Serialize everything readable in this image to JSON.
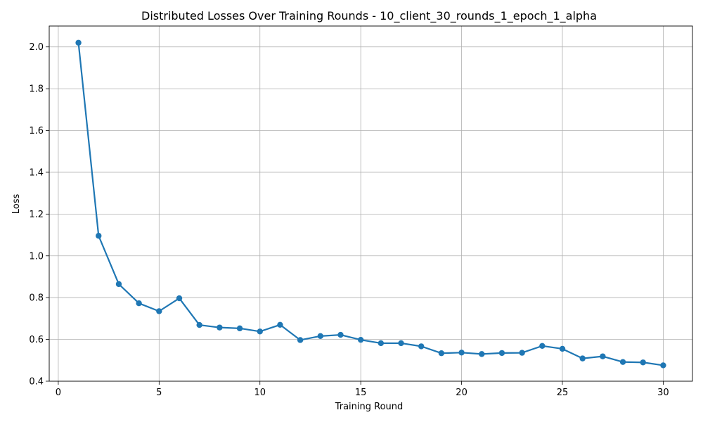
{
  "chart_data": {
    "type": "line",
    "title": "Distributed Losses Over Training Rounds  - 10_client_30_rounds_1_epoch_1_alpha",
    "xlabel": "Training Round",
    "ylabel": "Loss",
    "xlim": [
      -0.45,
      31.45
    ],
    "ylim": [
      0.4,
      2.1
    ],
    "x_ticks": [
      0,
      5,
      10,
      15,
      20,
      25,
      30
    ],
    "y_ticks": [
      0.4,
      0.6,
      0.8,
      1.0,
      1.2,
      1.4,
      1.6,
      1.8,
      2.0
    ],
    "x_tick_labels": [
      "0",
      "5",
      "10",
      "15",
      "20",
      "25",
      "30"
    ],
    "y_tick_labels": [
      "0.4",
      "0.6",
      "0.8",
      "1.0",
      "1.2",
      "1.4",
      "1.6",
      "1.8",
      "2.0"
    ],
    "grid": true,
    "series": [
      {
        "color": "#1f77b4",
        "marker": "circle",
        "x": [
          1,
          2,
          3,
          4,
          5,
          6,
          7,
          8,
          9,
          10,
          11,
          12,
          13,
          14,
          15,
          16,
          17,
          18,
          19,
          20,
          21,
          22,
          23,
          24,
          25,
          26,
          27,
          28,
          29,
          30
        ],
        "y": [
          2.02,
          1.096,
          0.865,
          0.773,
          0.735,
          0.797,
          0.669,
          0.657,
          0.653,
          0.638,
          0.67,
          0.597,
          0.616,
          0.622,
          0.598,
          0.582,
          0.582,
          0.567,
          0.534,
          0.537,
          0.53,
          0.535,
          0.536,
          0.569,
          0.555,
          0.509,
          0.519,
          0.492,
          0.49,
          0.476
        ]
      }
    ]
  }
}
